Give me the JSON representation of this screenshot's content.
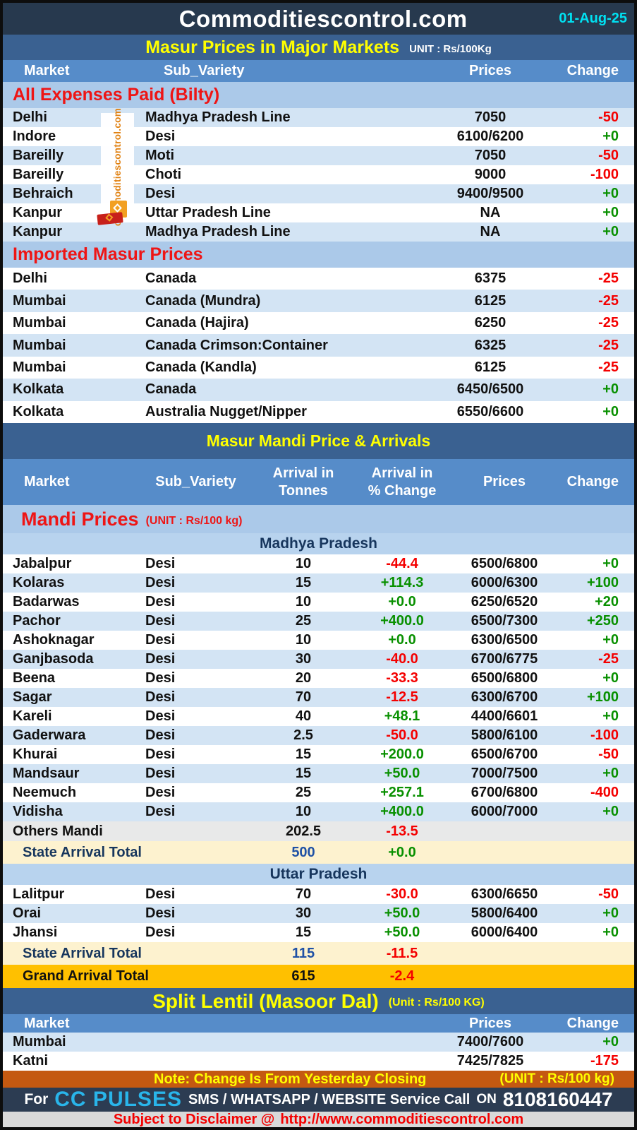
{
  "meta": {
    "site_title": "Commoditiescontrol.com",
    "date": "01-Aug-25"
  },
  "colors": {
    "header_bg": "#27394e",
    "band_bg": "#3a6191",
    "column_header_bg": "#568cc9",
    "section_header_bg": "#abc9e9",
    "row_alt_bg": "#d3e4f4",
    "state_header_bg": "#b8d3ee",
    "others_row_bg": "#e8e9e9",
    "state_total_bg": "#fdf2cf",
    "grand_total_bg": "#ffc000",
    "note_bg": "#c45911",
    "footer_bg": "#2c3c52",
    "disclaimer_bg": "#d9d9d9",
    "positive": "#089000",
    "negative": "#f40000",
    "date_cyan": "#00e1f2",
    "title_yellow": "#ffff00",
    "brand_cyan": "#29b5ea",
    "red_heading": "#ee1515",
    "navy_text": "#17365d",
    "blue_value": "#1f51a5",
    "watermark_orange": "#e08010"
  },
  "watermark": {
    "text": "commoditiescontrol.com"
  },
  "section1": {
    "title": "Masur Prices in Major Markets",
    "unit": "UNIT : Rs/100Kg",
    "columns": [
      "Market",
      "Sub_Variety",
      "Prices",
      "Change"
    ],
    "groups": [
      {
        "header": "All Expenses Paid (Bilty)",
        "rows": [
          {
            "market": "Delhi",
            "variety": "Madhya Pradesh Line",
            "price": "7050",
            "change": "-50"
          },
          {
            "market": "Indore",
            "variety": "Desi",
            "price": "6100/6200",
            "change": "+0"
          },
          {
            "market": "Bareilly",
            "variety": "Moti",
            "price": "7050",
            "change": "-50"
          },
          {
            "market": "Bareilly",
            "variety": "Choti",
            "price": "9000",
            "change": "-100"
          },
          {
            "market": "Behraich",
            "variety": "Desi",
            "price": "9400/9500",
            "change": "+0"
          },
          {
            "market": "Kanpur",
            "variety": "Uttar Pradesh Line",
            "price": "NA",
            "change": "+0"
          },
          {
            "market": "Kanpur",
            "variety": "Madhya Pradesh Line",
            "price": "NA",
            "change": "+0"
          }
        ]
      },
      {
        "header": "Imported Masur Prices",
        "rows": [
          {
            "market": "Delhi",
            "variety": "Canada",
            "price": "6375",
            "change": "-25"
          },
          {
            "market": "Mumbai",
            "variety": "Canada (Mundra)",
            "price": "6125",
            "change": "-25"
          },
          {
            "market": "Mumbai",
            "variety": "Canada (Hajira)",
            "price": "6250",
            "change": "-25"
          },
          {
            "market": "Mumbai",
            "variety": "Canada Crimson:Container",
            "price": "6325",
            "change": "-25"
          },
          {
            "market": "Mumbai",
            "variety": "Canada (Kandla)",
            "price": "6125",
            "change": "-25"
          },
          {
            "market": "Kolkata",
            "variety": "Canada",
            "price": "6450/6500",
            "change": "+0"
          },
          {
            "market": "Kolkata",
            "variety": "Australia Nugget/Nipper",
            "price": "6550/6600",
            "change": "+0"
          }
        ]
      }
    ]
  },
  "section2": {
    "title": "Masur Mandi Price & Arrivals",
    "columns": [
      "Market",
      "Sub_Variety",
      "Arrival in\nTonnes",
      "Arrival  in\n% Change",
      "Prices",
      "Change"
    ],
    "subtitle": "Mandi Prices",
    "subtitle_unit": "(UNIT : Rs/100 kg)",
    "states": [
      {
        "name": "Madhya Pradesh",
        "rows": [
          {
            "market": "Jabalpur",
            "variety": "Desi",
            "tonnes": "10",
            "pct": "-44.4",
            "price": "6500/6800",
            "change": "+0"
          },
          {
            "market": "Kolaras",
            "variety": "Desi",
            "tonnes": "15",
            "pct": "+114.3",
            "price": "6000/6300",
            "change": "+100"
          },
          {
            "market": "Badarwas",
            "variety": "Desi",
            "tonnes": "10",
            "pct": "+0.0",
            "price": "6250/6520",
            "change": "+20"
          },
          {
            "market": "Pachor",
            "variety": "Desi",
            "tonnes": "25",
            "pct": "+400.0",
            "price": "6500/7300",
            "change": "+250"
          },
          {
            "market": "Ashoknagar",
            "variety": "Desi",
            "tonnes": "10",
            "pct": "+0.0",
            "price": "6300/6500",
            "change": "+0"
          },
          {
            "market": "Ganjbasoda",
            "variety": "Desi",
            "tonnes": "30",
            "pct": "-40.0",
            "price": "6700/6775",
            "change": "-25"
          },
          {
            "market": "Beena",
            "variety": "Desi",
            "tonnes": "20",
            "pct": "-33.3",
            "price": "6500/6800",
            "change": "+0"
          },
          {
            "market": "Sagar",
            "variety": "Desi",
            "tonnes": "70",
            "pct": "-12.5",
            "price": "6300/6700",
            "change": "+100"
          },
          {
            "market": "Kareli",
            "variety": "Desi",
            "tonnes": "40",
            "pct": "+48.1",
            "price": "4400/6601",
            "change": "+0"
          },
          {
            "market": "Gaderwara",
            "variety": "Desi",
            "tonnes": "2.5",
            "pct": "-50.0",
            "price": "5800/6100",
            "change": "-100"
          },
          {
            "market": "Khurai",
            "variety": "Desi",
            "tonnes": "15",
            "pct": "+200.0",
            "price": "6500/6700",
            "change": "-50"
          },
          {
            "market": "Mandsaur",
            "variety": "Desi",
            "tonnes": "15",
            "pct": "+50.0",
            "price": "7000/7500",
            "change": "+0"
          },
          {
            "market": "Neemuch",
            "variety": "Desi",
            "tonnes": "25",
            "pct": "+257.1",
            "price": "6700/6800",
            "change": "-400"
          },
          {
            "market": "Vidisha",
            "variety": "Desi",
            "tonnes": "10",
            "pct": "+400.0",
            "price": "6000/7000",
            "change": "+0"
          }
        ],
        "others": {
          "label": "Others Mandi",
          "tonnes": "202.5",
          "pct": "-13.5"
        },
        "total": {
          "label": "State Arrival Total",
          "tonnes": "500",
          "pct": "+0.0"
        }
      },
      {
        "name": "Uttar Pradesh",
        "rows": [
          {
            "market": "Lalitpur",
            "variety": "Desi",
            "tonnes": "70",
            "pct": "-30.0",
            "price": "6300/6650",
            "change": "-50"
          },
          {
            "market": "Orai",
            "variety": "Desi",
            "tonnes": "30",
            "pct": "+50.0",
            "price": "5800/6400",
            "change": "+0"
          },
          {
            "market": "Jhansi",
            "variety": "Desi",
            "tonnes": "15",
            "pct": "+50.0",
            "price": "6000/6400",
            "change": "+0"
          }
        ],
        "total": {
          "label": "State Arrival Total",
          "tonnes": "115",
          "pct": "-11.5"
        }
      }
    ],
    "grand_total": {
      "label": "Grand Arrival Total",
      "tonnes": "615",
      "pct": "-2.4"
    }
  },
  "section3": {
    "title": "Split Lentil (Masoor Dal)",
    "unit": "(Unit : Rs/100 KG)",
    "columns": [
      "Market",
      "Prices",
      "Change"
    ],
    "rows": [
      {
        "market": "Mumbai",
        "price": "7400/7600",
        "change": "+0"
      },
      {
        "market": "Katni",
        "price": "7425/7825",
        "change": "-175"
      }
    ]
  },
  "note": {
    "text": "Note: Change Is From Yesterday Closing",
    "unit": "(UNIT : Rs/100 kg)"
  },
  "footer": {
    "for_label": "For",
    "brand": "CC PULSES",
    "services": "SMS / WHATSAPP / WEBSITE Service Call",
    "on_label": "ON",
    "phone": "8108160447"
  },
  "disclaimer": {
    "label": "Subject to Disclaimer @",
    "url": "http://www.commoditiescontrol.com"
  }
}
